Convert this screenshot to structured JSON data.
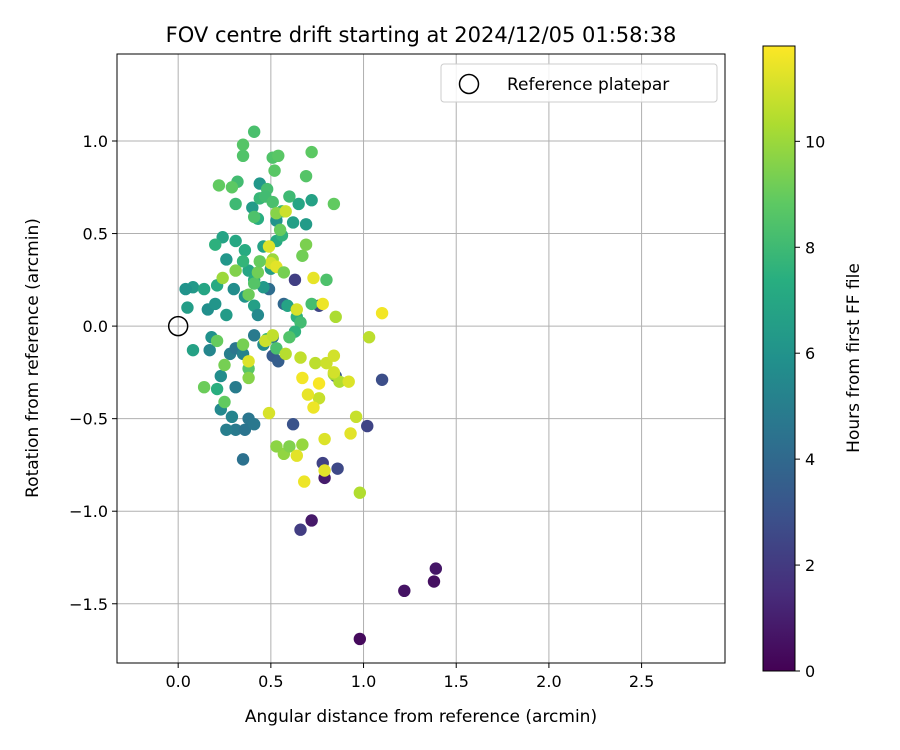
{
  "chart_data": {
    "type": "scatter",
    "title": "FOV centre drift starting at 2024/12/05 01:58:38",
    "xlabel": "Angular distance from reference (arcmin)",
    "ylabel": "Rotation from reference (arcmin)",
    "xlim": [
      -0.33,
      2.95
    ],
    "ylim": [
      -1.82,
      1.47
    ],
    "xticks": [
      "0.0",
      "0.5",
      "1.0",
      "1.5",
      "2.0",
      "2.5"
    ],
    "yticks": [
      "1.0",
      "0.5",
      "0.0",
      "−0.5",
      "−1.0",
      "−1.5"
    ],
    "grid": true,
    "legend": {
      "placement": "upper right",
      "entries": [
        "Reference platepar"
      ]
    },
    "reference_point": {
      "x": 0.0,
      "y": 0.0,
      "marker": "open-circle"
    },
    "colorbar": {
      "label": "Hours from first FF file",
      "range": [
        0,
        11.8
      ],
      "ticks": [
        "0",
        "2",
        "4",
        "6",
        "8",
        "10"
      ],
      "colormap": "viridis"
    },
    "series": [
      {
        "points": [
          [
            0.98,
            -1.69,
            0.3
          ],
          [
            1.22,
            -1.43,
            0.6
          ],
          [
            1.38,
            -1.38,
            0.5
          ],
          [
            1.39,
            -1.31,
            0.7
          ],
          [
            0.72,
            -1.05,
            0.8
          ],
          [
            0.79,
            -0.82,
            0.9
          ],
          [
            0.66,
            -1.1,
            2.1
          ],
          [
            0.78,
            -0.74,
            2.3
          ],
          [
            0.86,
            -0.77,
            2.6
          ],
          [
            1.02,
            -0.54,
            2.4
          ],
          [
            1.1,
            -0.29,
            2.8
          ],
          [
            0.62,
            -0.53,
            3.0
          ],
          [
            0.63,
            0.25,
            2.2
          ],
          [
            0.76,
            0.11,
            2.5
          ],
          [
            0.85,
            -0.27,
            3.2
          ],
          [
            0.51,
            -0.16,
            3.3
          ],
          [
            0.54,
            -0.19,
            3.5
          ],
          [
            0.57,
            0.12,
            3.9
          ],
          [
            0.49,
            0.2,
            4.2
          ],
          [
            0.35,
            -0.72,
            4.4
          ],
          [
            0.38,
            -0.5,
            4.6
          ],
          [
            0.31,
            -0.56,
            4.8
          ],
          [
            0.26,
            -0.56,
            5.0
          ],
          [
            0.36,
            -0.56,
            4.5
          ],
          [
            0.41,
            -0.53,
            4.7
          ],
          [
            0.29,
            -0.49,
            5.3
          ],
          [
            0.23,
            -0.45,
            5.5
          ],
          [
            0.31,
            -0.33,
            4.9
          ],
          [
            0.23,
            -0.27,
            5.7
          ],
          [
            0.17,
            -0.13,
            5.4
          ],
          [
            0.28,
            -0.15,
            5.0
          ],
          [
            0.31,
            -0.12,
            4.6
          ],
          [
            0.35,
            -0.15,
            5.2
          ],
          [
            0.41,
            -0.05,
            4.8
          ],
          [
            0.46,
            -0.1,
            5.6
          ],
          [
            0.51,
            -0.06,
            4.4
          ],
          [
            0.18,
            -0.06,
            5.9
          ],
          [
            0.16,
            0.09,
            5.8
          ],
          [
            0.2,
            0.12,
            6.1
          ],
          [
            0.26,
            0.06,
            6.4
          ],
          [
            0.3,
            0.2,
            5.7
          ],
          [
            0.36,
            0.16,
            6.0
          ],
          [
            0.41,
            0.11,
            6.6
          ],
          [
            0.43,
            0.06,
            5.5
          ],
          [
            0.46,
            0.21,
            6.3
          ],
          [
            0.5,
            0.31,
            6.5
          ],
          [
            0.38,
            0.3,
            6.9
          ],
          [
            0.26,
            0.36,
            6.2
          ],
          [
            0.31,
            0.46,
            7.0
          ],
          [
            0.24,
            0.48,
            6.8
          ],
          [
            0.36,
            0.41,
            7.2
          ],
          [
            0.41,
            0.25,
            7.4
          ],
          [
            0.46,
            0.43,
            6.7
          ],
          [
            0.53,
            0.46,
            7.1
          ],
          [
            0.56,
            0.49,
            7.6
          ],
          [
            0.43,
            0.58,
            7.3
          ],
          [
            0.4,
            0.64,
            6.4
          ],
          [
            0.44,
            0.77,
            6.2
          ],
          [
            0.53,
            0.57,
            6.0
          ],
          [
            0.62,
            0.56,
            6.6
          ],
          [
            0.65,
            0.66,
            6.9
          ],
          [
            0.69,
            0.55,
            6.4
          ],
          [
            0.72,
            0.68,
            6.7
          ],
          [
            0.59,
            0.11,
            6.8
          ],
          [
            0.64,
            0.05,
            7.5
          ],
          [
            0.08,
            0.21,
            6.3
          ],
          [
            0.04,
            0.2,
            6.0
          ],
          [
            0.05,
            0.1,
            6.5
          ],
          [
            0.08,
            -0.13,
            6.7
          ],
          [
            0.14,
            0.2,
            6.9
          ],
          [
            0.21,
            0.22,
            7.1
          ],
          [
            0.21,
            -0.34,
            7.4
          ],
          [
            0.25,
            -0.41,
            8.9
          ],
          [
            0.2,
            0.44,
            7.5
          ],
          [
            0.35,
            0.35,
            7.7
          ],
          [
            0.31,
            0.66,
            8.0
          ],
          [
            0.41,
            0.59,
            8.4
          ],
          [
            0.44,
            0.69,
            7.8
          ],
          [
            0.48,
            0.74,
            8.2
          ],
          [
            0.51,
            0.91,
            8.5
          ],
          [
            0.54,
            0.92,
            8.7
          ],
          [
            0.47,
            0.7,
            8.1
          ],
          [
            0.51,
            0.67,
            8.3
          ],
          [
            0.56,
            0.62,
            7.9
          ],
          [
            0.6,
            0.7,
            8.0
          ],
          [
            0.69,
            0.81,
            8.6
          ],
          [
            0.72,
            0.94,
            8.8
          ],
          [
            0.84,
            0.66,
            8.9
          ],
          [
            0.8,
            0.25,
            8.4
          ],
          [
            0.72,
            0.12,
            8.2
          ],
          [
            0.66,
            0.02,
            8.1
          ],
          [
            0.63,
            -0.03,
            7.6
          ],
          [
            0.6,
            -0.06,
            8.5
          ],
          [
            0.53,
            -0.12,
            8.3
          ],
          [
            0.48,
            -0.07,
            7.9
          ],
          [
            0.38,
            -0.23,
            8.7
          ],
          [
            0.41,
            0.23,
            8.6
          ],
          [
            0.35,
            0.98,
            8.6
          ],
          [
            0.41,
            1.05,
            8.3
          ],
          [
            0.35,
            0.92,
            8.5
          ],
          [
            0.32,
            0.78,
            8.1
          ],
          [
            0.29,
            0.75,
            8.8
          ],
          [
            0.22,
            0.76,
            8.9
          ],
          [
            0.52,
            0.84,
            8.7
          ],
          [
            0.55,
            0.52,
            9.0
          ],
          [
            0.67,
            0.38,
            9.2
          ],
          [
            0.69,
            0.44,
            9.4
          ],
          [
            0.38,
            0.17,
            9.1
          ],
          [
            0.31,
            0.3,
            9.5
          ],
          [
            0.35,
            -0.1,
            9.3
          ],
          [
            0.38,
            -0.28,
            9.6
          ],
          [
            0.21,
            -0.08,
            9.0
          ],
          [
            0.14,
            -0.33,
            9.1
          ],
          [
            0.25,
            -0.21,
            9.3
          ],
          [
            0.43,
            0.29,
            9.2
          ],
          [
            0.53,
            0.61,
            9.6
          ],
          [
            0.57,
            -0.69,
            9.8
          ],
          [
            0.6,
            -0.65,
            9.5
          ],
          [
            0.67,
            -0.64,
            9.9
          ],
          [
            0.53,
            -0.65,
            9.7
          ],
          [
            0.51,
            0.36,
            10.0
          ],
          [
            0.84,
            -0.26,
            10.2
          ],
          [
            0.87,
            -0.3,
            10.4
          ],
          [
            0.98,
            -0.9,
            10.4
          ],
          [
            1.03,
            -0.06,
            10.6
          ],
          [
            0.85,
            0.05,
            10.3
          ],
          [
            0.76,
            -0.39,
            10.8
          ],
          [
            0.74,
            -0.2,
            10.6
          ],
          [
            0.8,
            -0.2,
            10.9
          ],
          [
            0.66,
            -0.17,
            10.7
          ],
          [
            0.58,
            -0.15,
            10.5
          ],
          [
            0.47,
            -0.08,
            10.9
          ],
          [
            0.24,
            0.26,
            10.0
          ],
          [
            0.51,
            -0.05,
            10.7
          ],
          [
            0.5,
            0.34,
            11.0
          ],
          [
            0.49,
            0.43,
            11.2
          ],
          [
            0.53,
            0.32,
            11.3
          ],
          [
            0.58,
            0.62,
            10.9
          ],
          [
            0.64,
            0.09,
            11.1
          ],
          [
            0.73,
            0.26,
            11.4
          ],
          [
            0.78,
            0.12,
            11.5
          ],
          [
            0.84,
            -0.16,
            11.0
          ],
          [
            0.93,
            -0.58,
            11.3
          ],
          [
            0.96,
            -0.49,
            10.8
          ],
          [
            0.73,
            -0.44,
            11.5
          ],
          [
            0.79,
            -0.61,
            11.2
          ],
          [
            0.79,
            -0.78,
            11.3
          ],
          [
            0.67,
            -0.28,
            11.6
          ],
          [
            0.7,
            -0.37,
            11.4
          ],
          [
            0.76,
            -0.31,
            11.7
          ],
          [
            0.84,
            -0.25,
            11.0
          ],
          [
            0.92,
            -0.3,
            11.2
          ],
          [
            0.64,
            -0.7,
            11.3
          ],
          [
            0.68,
            -0.84,
            11.5
          ],
          [
            0.49,
            -0.47,
            11.1
          ],
          [
            0.38,
            -0.19,
            11.2
          ],
          [
            1.1,
            0.07,
            11.6
          ],
          [
            0.44,
            0.35,
            9.0
          ],
          [
            0.57,
            0.29,
            9.3
          ]
        ]
      }
    ]
  }
}
